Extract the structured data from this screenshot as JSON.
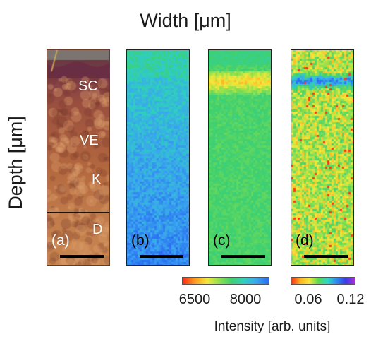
{
  "figure": {
    "title": "Width [μm]",
    "ylabel": "Depth [μm]"
  },
  "panels": [
    {
      "label": "(a)",
      "kind": "histology-image",
      "layers": [
        "SC",
        "VE",
        "K",
        "D"
      ]
    },
    {
      "label": "(b)",
      "kind": "intensity-map",
      "colorscale": "colorbar_1"
    },
    {
      "label": "(c)",
      "kind": "intensity-map",
      "colorscale": "colorbar_1"
    },
    {
      "label": "(d)",
      "kind": "ratio-map",
      "colorscale": "colorbar_2"
    }
  ],
  "colorbar_1": {
    "ticks": [
      "6500",
      "8000"
    ],
    "range": [
      6500,
      8800
    ]
  },
  "colorbar_2": {
    "ticks": [
      "0.06",
      "0.12"
    ],
    "range": [
      0.05,
      0.125
    ]
  },
  "colorbar_label": "Intensity [arb. units]",
  "colors": {
    "histology_dark": "#6a3a2a",
    "histology_light": "#c98a5a",
    "map_green": "#3ed06f",
    "map_cyan": "#2fcfc0",
    "map_blue": "#2a6cf2"
  }
}
